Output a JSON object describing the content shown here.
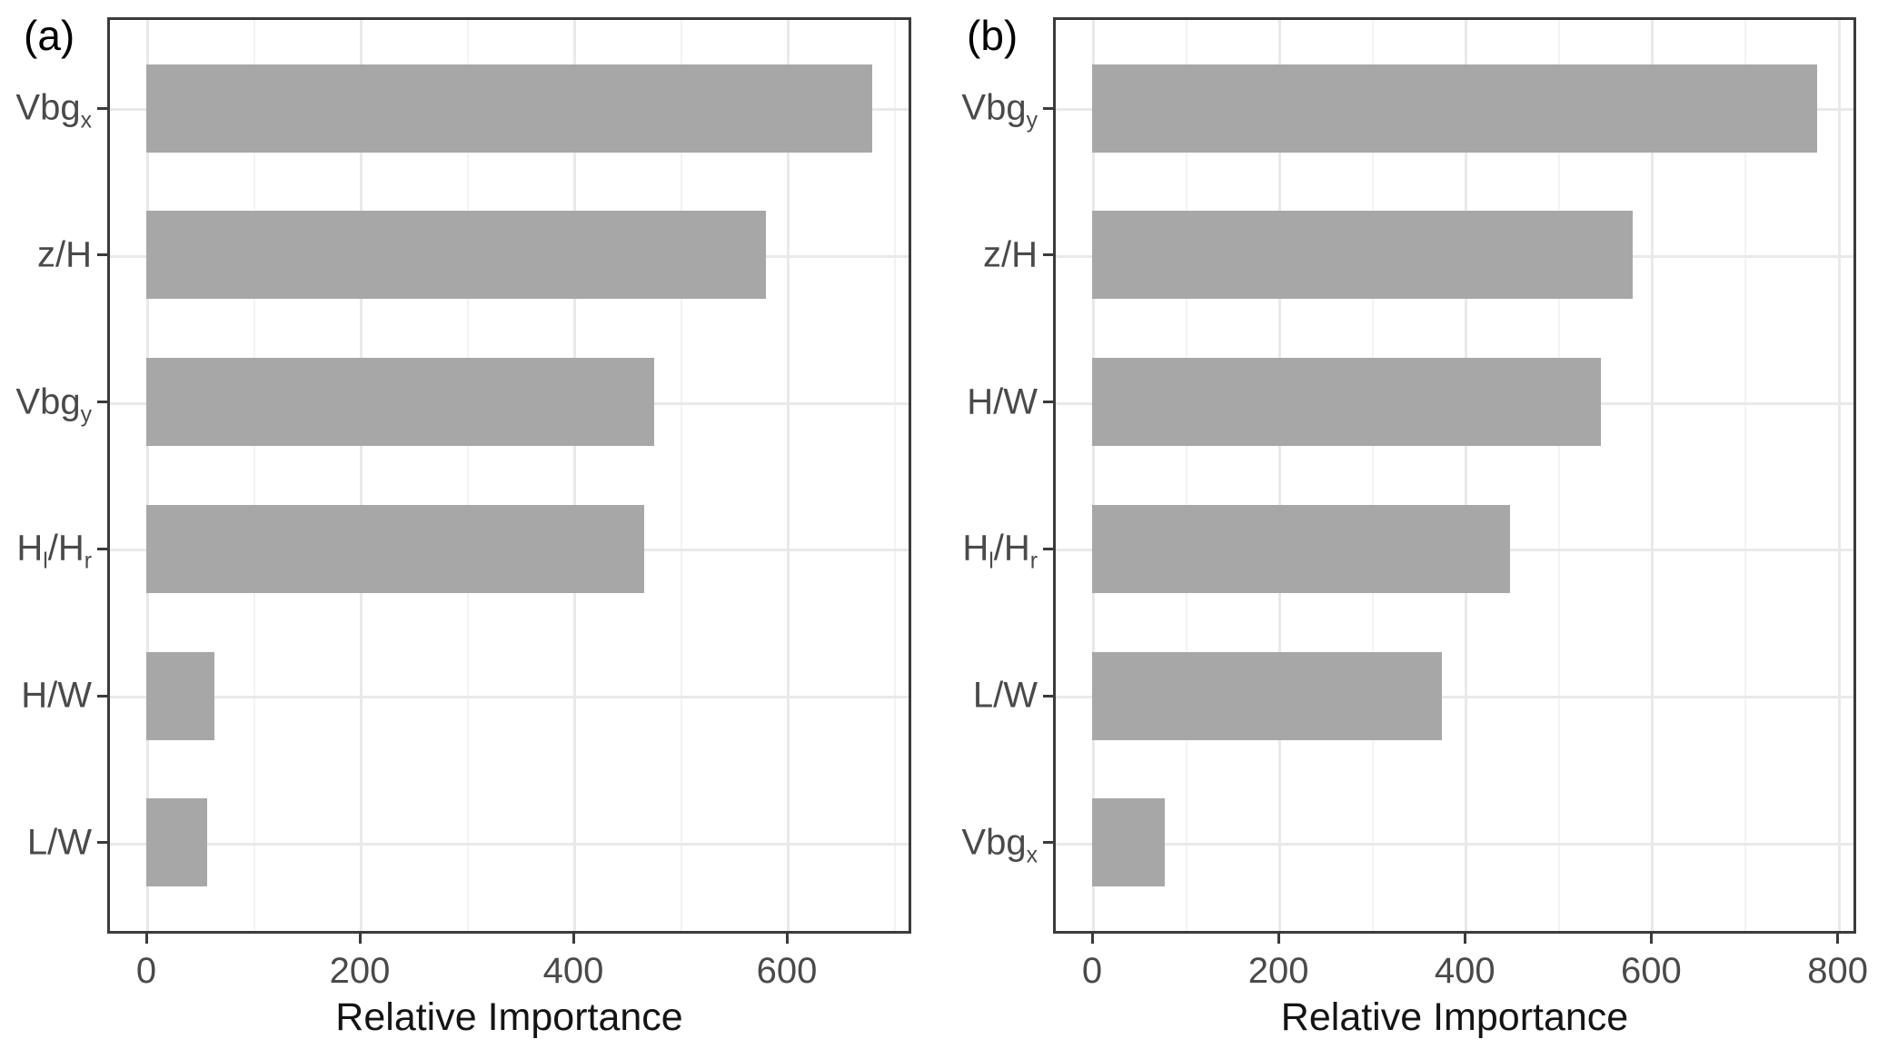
{
  "figure": {
    "background": "#ffffff",
    "colors": {
      "bar_fill": "#a7a7a7",
      "panel_border": "#3b3b3b",
      "grid_major": "#e9e9e9",
      "grid_minor": "#f3f3f3",
      "tick_mark": "#3b3b3b",
      "axis_text": "#4a4a4a",
      "axis_title_text": "#141414",
      "panel_label_text": "#000000"
    }
  },
  "chart_data": [
    {
      "type": "bar",
      "orientation": "horizontal",
      "panel_label": "(a)",
      "title": "",
      "xlabel": "Relative Importance",
      "ylabel": "",
      "categories": [
        "Vbg_x",
        "z/H",
        "Vbg_y",
        "H_l/H_r",
        "H/W",
        "L/W"
      ],
      "values": [
        680,
        580,
        476,
        466,
        64,
        57
      ],
      "xlim": [
        -34,
        714
      ],
      "x_major_ticks": [
        0,
        200,
        400,
        600
      ],
      "x_minor_ticks": [
        100,
        300,
        500,
        700
      ],
      "grid": "major+minor vertical, major horizontal at category centers",
      "legend": "none",
      "bar_color": "#a7a7a7"
    },
    {
      "type": "bar",
      "orientation": "horizontal",
      "panel_label": "(b)",
      "title": "",
      "xlabel": "Relative Importance",
      "ylabel": "",
      "categories": [
        "Vbg_y",
        "z/H",
        "H/W",
        "H_l/H_r",
        "L/W",
        "Vbg_x"
      ],
      "values": [
        778,
        580,
        546,
        448,
        375,
        78
      ],
      "xlim": [
        -39,
        817
      ],
      "x_major_ticks": [
        0,
        200,
        400,
        600,
        800
      ],
      "x_minor_ticks": [
        100,
        300,
        500,
        700
      ],
      "grid": "major+minor vertical, major horizontal at category centers",
      "legend": "none",
      "bar_color": "#a7a7a7"
    }
  ]
}
